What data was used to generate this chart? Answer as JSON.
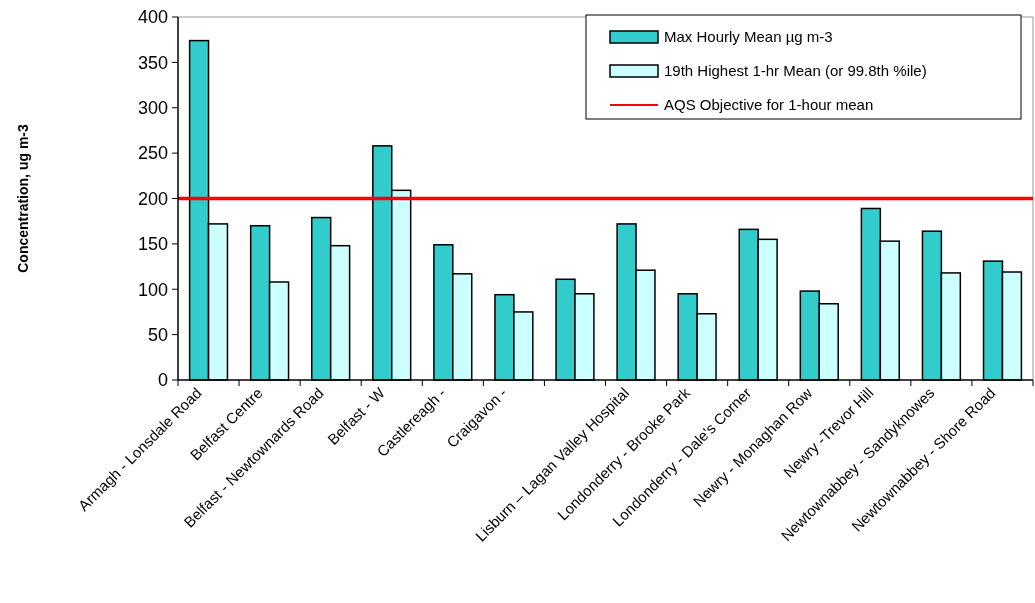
{
  "chart_data": {
    "type": "bar",
    "ylabel": "Concentration, ug m-3",
    "categories": [
      "Armagh - Lonsdale Road",
      "Belfast Centre",
      "Belfast - Newtownards Road",
      "Belfast - W",
      "Castlereagh - ",
      "Craigavon -",
      null,
      "Lisburn – Lagan Valley Hospital",
      "Londonderry - Brooke Park",
      "Londonderry - Dale's Corner",
      "Newry - Monaghan Row",
      "Newry -Trevor Hill",
      "Newtownabbey - Sandyknowes",
      "Newtownabbey - Shore Road"
    ],
    "series": [
      {
        "name": "Max Hourly Mean µg m-3",
        "color": "#33cccc",
        "values": [
          374,
          170,
          179,
          258,
          149,
          94,
          111,
          172,
          95,
          166,
          98,
          189,
          164,
          131
        ]
      },
      {
        "name": "19th Highest 1-hr Mean (or 99.8th %ile)",
        "color": "#ccffff",
        "values": [
          172,
          108,
          148,
          209,
          117,
          75,
          95,
          121,
          73,
          155,
          84,
          153,
          118,
          119
        ]
      }
    ],
    "ref_lines": [
      {
        "axis": "y",
        "value": 200,
        "label": "AQS Objective for 1-hour mean",
        "color": "#ff0000"
      }
    ],
    "ylim": [
      0,
      400
    ],
    "yticks": [
      0,
      50,
      100,
      150,
      200,
      250,
      300,
      350,
      400
    ],
    "legend": "top right",
    "grid": false
  }
}
